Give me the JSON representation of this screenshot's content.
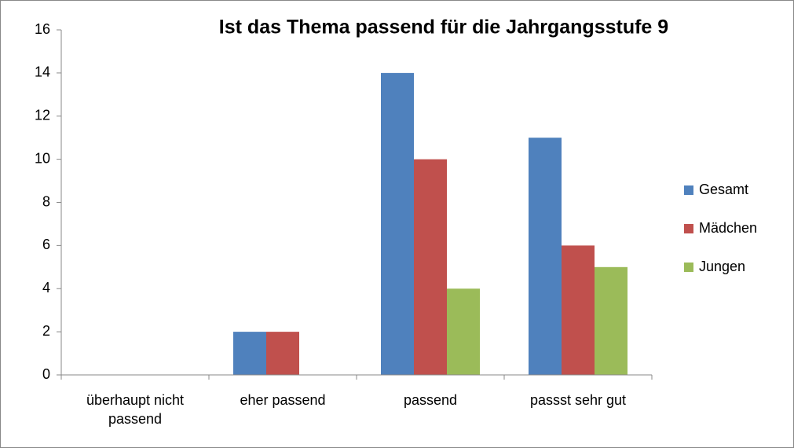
{
  "chart_data": {
    "type": "bar",
    "title": "Ist das Thema passend für die Jahrgangsstufe 9",
    "categories": [
      "überhaupt nicht passend",
      "eher passend",
      "passend",
      "passst sehr gut"
    ],
    "series": [
      {
        "name": "Gesamt",
        "color": "#4f81bd",
        "values": [
          0,
          2,
          14,
          11
        ]
      },
      {
        "name": "Mädchen",
        "color": "#c0504d",
        "values": [
          0,
          2,
          10,
          6
        ]
      },
      {
        "name": "Jungen",
        "color": "#9bbb59",
        "values": [
          0,
          0,
          4,
          5
        ]
      }
    ],
    "ylim": [
      0,
      16
    ],
    "yticks": [
      0,
      2,
      4,
      6,
      8,
      10,
      12,
      14,
      16
    ],
    "grid": false,
    "legend": "right"
  }
}
